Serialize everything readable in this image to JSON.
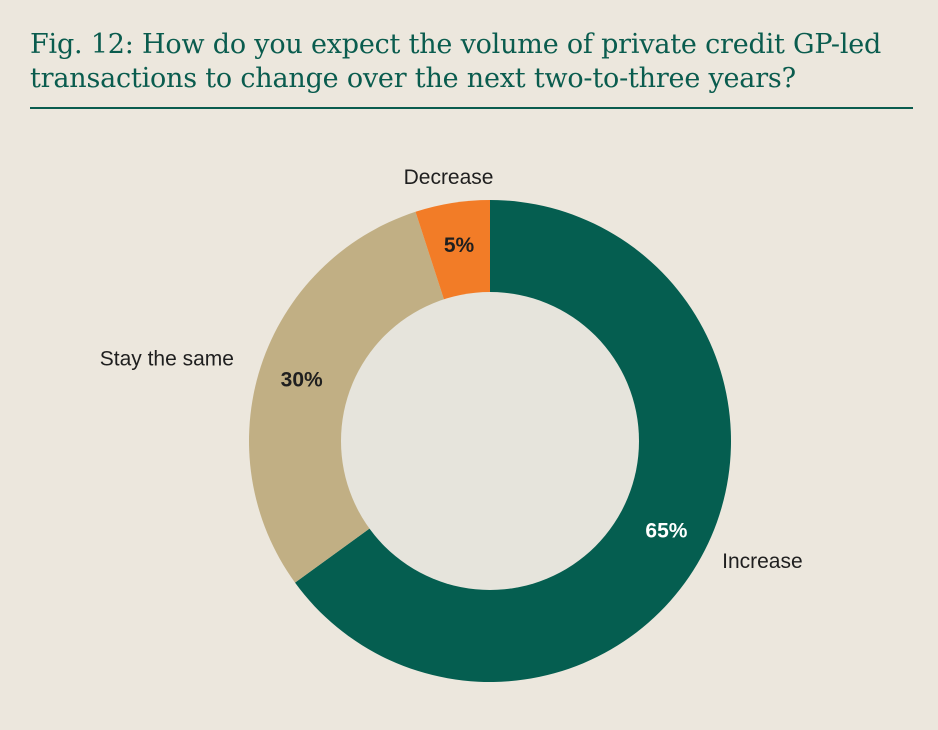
{
  "figure": {
    "title": "Fig. 12: How do you expect the volume of private credit GP-led transactions to change over the next two-to-three years?"
  },
  "colors": {
    "background": "#ece7dd",
    "title_text": "#0a5c4e",
    "rule": "#0a5c4e",
    "inner_disc": "#e6e4dc",
    "increase": "#055e50",
    "stay_the_same": "#c1af84",
    "decrease": "#f27c27"
  },
  "chart_data": {
    "type": "pie",
    "variant": "donut",
    "unit": "%",
    "categories": [
      "Increase",
      "Stay the same",
      "Decrease"
    ],
    "values": [
      65,
      30,
      5
    ],
    "value_labels": [
      "65%",
      "30%",
      "5%"
    ],
    "slice_colors": [
      "#055e50",
      "#c1af84",
      "#f27c27"
    ],
    "value_label_colors": [
      "#ffffff",
      "#1f1f1f",
      "#1f1f1f"
    ],
    "start": "12 o'clock",
    "direction": "clockwise",
    "legend": "none"
  }
}
